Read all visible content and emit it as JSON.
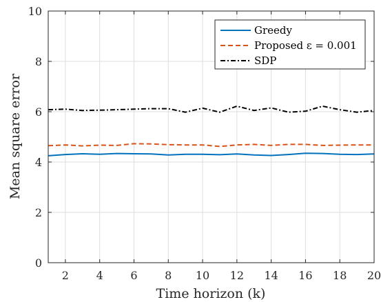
{
  "chart_data": {
    "type": "line",
    "xlabel": "Time horizon (k)",
    "ylabel": "Mean square error",
    "xlim": [
      1,
      20
    ],
    "ylim": [
      0,
      10
    ],
    "xticks": [
      2,
      4,
      6,
      8,
      10,
      12,
      14,
      16,
      18,
      20
    ],
    "yticks": [
      0,
      2,
      4,
      6,
      8,
      10
    ],
    "grid": true,
    "legend_position": "top-right",
    "x": [
      1,
      2,
      3,
      4,
      5,
      6,
      7,
      8,
      9,
      10,
      11,
      12,
      13,
      14,
      15,
      16,
      17,
      18,
      19,
      20
    ],
    "series": [
      {
        "name": "Greedy",
        "color": "#0072bd",
        "style": "solid",
        "values": [
          4.25,
          4.3,
          4.33,
          4.31,
          4.34,
          4.33,
          4.32,
          4.28,
          4.31,
          4.31,
          4.29,
          4.32,
          4.28,
          4.26,
          4.3,
          4.35,
          4.34,
          4.31,
          4.3,
          4.32
        ]
      },
      {
        "name": "Proposed ε = 0.001",
        "color": "#d95319",
        "style": "dashed",
        "values": [
          4.65,
          4.68,
          4.64,
          4.67,
          4.66,
          4.73,
          4.72,
          4.69,
          4.68,
          4.68,
          4.62,
          4.68,
          4.7,
          4.66,
          4.7,
          4.7,
          4.66,
          4.67,
          4.68,
          4.68
        ]
      },
      {
        "name": "SDP",
        "color": "#000000",
        "style": "dashdot",
        "values": [
          6.08,
          6.1,
          6.05,
          6.06,
          6.08,
          6.1,
          6.12,
          6.12,
          5.98,
          6.14,
          5.98,
          6.22,
          6.05,
          6.15,
          5.98,
          6.02,
          6.22,
          6.08,
          5.98,
          6.05
        ]
      }
    ]
  }
}
